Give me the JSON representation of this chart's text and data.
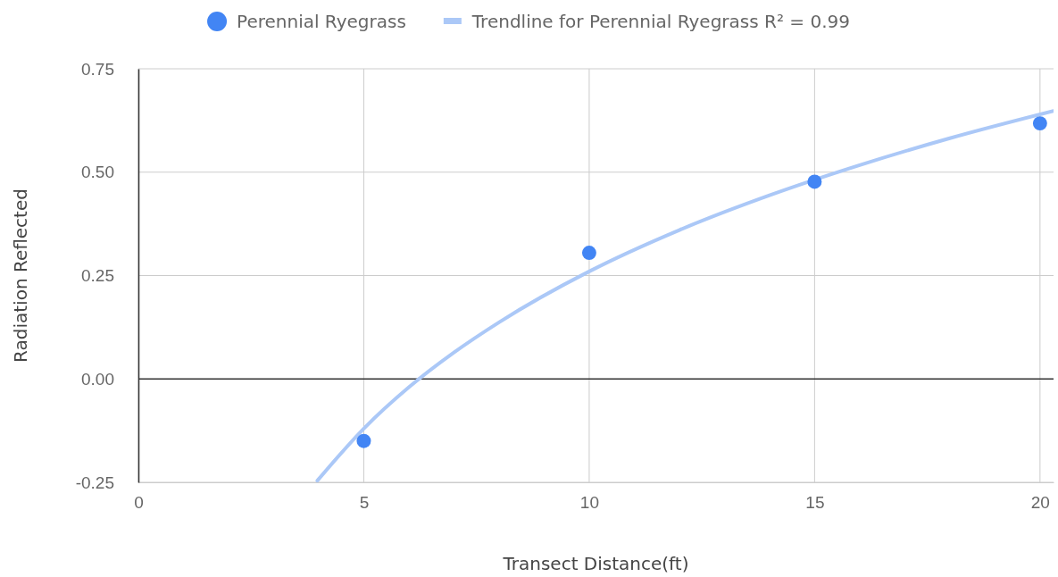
{
  "chart_data": {
    "type": "scatter",
    "xlabel": "Transect Distance(ft)",
    "ylabel": "Radiation Reflected",
    "xlim": [
      0,
      20.3
    ],
    "xticks": [
      0,
      5,
      10,
      15,
      20
    ],
    "ylim": [
      -0.25,
      0.75
    ],
    "yticks": [
      {
        "value": -0.25,
        "label": "-0.25"
      },
      {
        "value": 0,
        "label": "0.00"
      },
      {
        "value": 0.25,
        "label": "0.25"
      },
      {
        "value": 0.5,
        "label": "0.50"
      },
      {
        "value": 0.75,
        "label": "0.75"
      }
    ],
    "grid": true,
    "legend": "top",
    "marker": "circle",
    "ref_lines": [
      {
        "axis": "y",
        "value": 0,
        "color": "#333333"
      }
    ],
    "series": [
      {
        "name": "Perennial Ryegrass",
        "color": "#4285f4",
        "x": [
          5,
          10,
          15,
          20
        ],
        "values": [
          -0.15,
          0.305,
          0.477,
          0.618
        ]
      },
      {
        "name": "Trendline for Perennial Ryegrass R² = 0.99",
        "type": "line",
        "marker": "none",
        "color": "#abc8f7",
        "x": [
          3.97,
          5,
          6,
          7,
          8,
          10,
          12,
          14,
          16,
          18,
          20.3
        ],
        "values": [
          -0.246,
          -0.12,
          -0.02,
          0.064,
          0.137,
          0.26,
          0.36,
          0.444,
          0.517,
          0.582,
          0.648
        ]
      }
    ]
  }
}
